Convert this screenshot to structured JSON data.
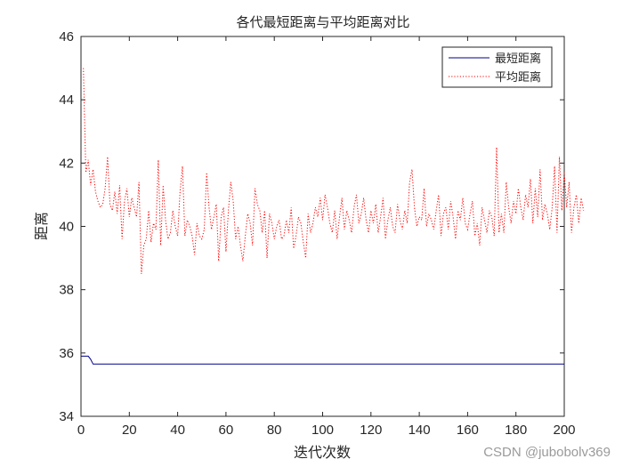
{
  "chart_data": {
    "type": "line",
    "title": "各代最短距离与平均距离对比",
    "xlabel": "迭代次数",
    "ylabel": "距离",
    "xlim": [
      0,
      200
    ],
    "ylim": [
      34,
      46
    ],
    "xticks": [
      0,
      20,
      40,
      60,
      80,
      100,
      120,
      140,
      160,
      180,
      200
    ],
    "yticks": [
      34,
      36,
      38,
      40,
      42,
      44,
      46
    ],
    "grid": false,
    "legend_position": "top-right",
    "series": [
      {
        "name": "最短距离",
        "color": "#00008b",
        "style": "solid",
        "x": [
          0,
          3,
          4,
          5,
          200
        ],
        "values": [
          35.9,
          35.9,
          35.8,
          35.65,
          35.65
        ]
      },
      {
        "name": "平均距离",
        "color": "#ff0000",
        "style": "dotted",
        "values": [
          45.0,
          41.7,
          42.1,
          41.3,
          41.8,
          41.1,
          40.8,
          40.6,
          40.7,
          41.2,
          42.2,
          40.7,
          40.5,
          41.1,
          40.4,
          41.3,
          39.6,
          40.8,
          41.2,
          40.3,
          40.9,
          40.6,
          40.3,
          41.4,
          38.5,
          39.4,
          39.6,
          40.5,
          39.5,
          40.1,
          39.9,
          42.1,
          39.4,
          41.3,
          40.2,
          39.6,
          39.8,
          40.5,
          40.0,
          39.7,
          41.1,
          41.9,
          39.7,
          40.2,
          40.0,
          39.7,
          39.1,
          40.1,
          39.7,
          39.6,
          39.9,
          41.7,
          40.6,
          39.9,
          40.3,
          40.7,
          38.9,
          40.3,
          40.6,
          39.2,
          40.5,
          41.4,
          40.8,
          39.6,
          40.0,
          39.4,
          38.9,
          39.7,
          40.4,
          40.1,
          39.4,
          41.2,
          40.7,
          40.5,
          39.8,
          40.5,
          39.0,
          40.4,
          40.1,
          39.6,
          40.0,
          40.2,
          39.6,
          39.7,
          40.2,
          39.8,
          40.6,
          39.3,
          39.7,
          40.3,
          40.1,
          39.5,
          39.0,
          40.4,
          39.8,
          40.1,
          40.6,
          40.3,
          40.9,
          40.2,
          41.0,
          40.6,
          40.1,
          39.8,
          40.5,
          39.6,
          40.3,
          40.9,
          39.9,
          40.5,
          40.2,
          39.8,
          40.6,
          41.0,
          40.1,
          40.4,
          40.9,
          40.2,
          39.8,
          40.5,
          40.1,
          40.7,
          39.8,
          40.3,
          40.9,
          39.6,
          40.2,
          40.6,
          40.0,
          39.8,
          40.7,
          40.2,
          39.9,
          40.5,
          40.1,
          41.4,
          41.8,
          40.6,
          40.0,
          40.3,
          40.2,
          41.2,
          40.0,
          40.4,
          40.2,
          39.9,
          40.5,
          41.0,
          39.7,
          40.4,
          40.6,
          39.9,
          40.8,
          40.3,
          39.6,
          40.5,
          40.2,
          40.9,
          40.1,
          39.9,
          40.4,
          40.8,
          39.7,
          40.1,
          39.4,
          40.6,
          40.2,
          39.8,
          40.5,
          40.3,
          39.7,
          42.5,
          39.8,
          40.4,
          39.8,
          41.4,
          40.6,
          40.1,
          40.8,
          40.4,
          41.2,
          40.6,
          40.2,
          41.0,
          40.6,
          41.5,
          40.1,
          41.2,
          40.3,
          41.8,
          40.2,
          40.7,
          40.4,
          39.9,
          40.6,
          41.9,
          39.8,
          42.2,
          40.5,
          41.7,
          40.6,
          41.4,
          39.8,
          40.6,
          41.0,
          40.1,
          40.9,
          40.5
        ]
      }
    ]
  },
  "watermark": "CSDN @jubobolv369"
}
